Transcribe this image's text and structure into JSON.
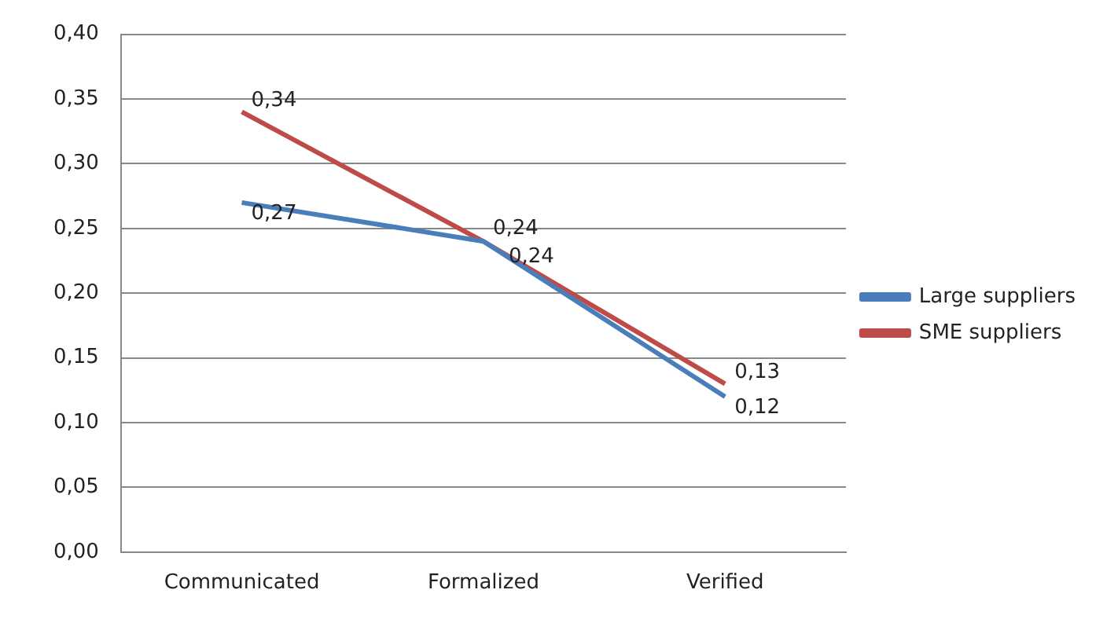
{
  "chart_data": {
    "type": "line",
    "categories": [
      "Communicated",
      "Formalized",
      "Verified"
    ],
    "series": [
      {
        "name": "Large suppliers",
        "color": "#4a7ebb",
        "values": [
          0.27,
          0.24,
          0.12
        ],
        "value_labels": [
          "0,27",
          "0,24",
          "0,12"
        ]
      },
      {
        "name": "SME suppliers",
        "color": "#be4b48",
        "values": [
          0.34,
          0.24,
          0.13
        ],
        "value_labels": [
          "0,34",
          "0,24",
          "0,13"
        ]
      }
    ],
    "ylim": [
      0,
      0.4
    ],
    "yticks": [
      {
        "value": 0,
        "label": "0,00"
      },
      {
        "value": 0.05,
        "label": "0,05"
      },
      {
        "value": 0.1,
        "label": "0,10"
      },
      {
        "value": 0.15,
        "label": "0,15"
      },
      {
        "value": 0.2,
        "label": "0,20"
      },
      {
        "value": 0.25,
        "label": "0,25"
      },
      {
        "value": 0.3,
        "label": "0,30"
      },
      {
        "value": 0.35,
        "label": "0,35"
      },
      {
        "value": 0.4,
        "label": "0,40"
      }
    ],
    "grid": "y",
    "legend": "right",
    "marker": "none",
    "line_style": "solid"
  }
}
